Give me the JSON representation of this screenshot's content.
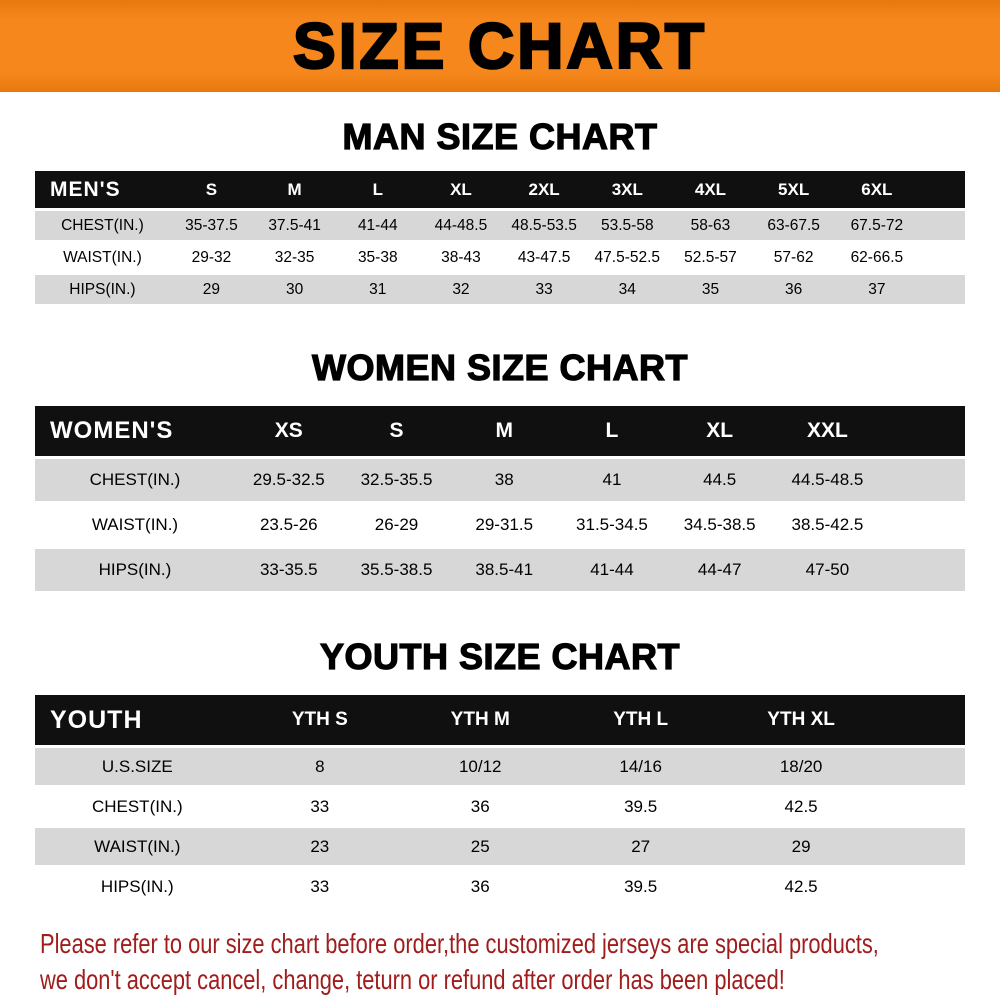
{
  "banner": {
    "title": "SIZE CHART"
  },
  "sections": [
    {
      "id": "men",
      "heading": "MAN SIZE CHART",
      "table": {
        "header": [
          "MEN'S",
          "S",
          "M",
          "L",
          "XL",
          "2XL",
          "3XL",
          "4XL",
          "5XL",
          "6XL"
        ],
        "rows": [
          [
            "CHEST(IN.)",
            "35-37.5",
            "37.5-41",
            "41-44",
            "44-48.5",
            "48.5-53.5",
            "53.5-58",
            "58-63",
            "63-67.5",
            "67.5-72"
          ],
          [
            "WAIST(IN.)",
            "29-32",
            "32-35",
            "35-38",
            "38-43",
            "43-47.5",
            "47.5-52.5",
            "52.5-57",
            "57-62",
            "62-66.5"
          ],
          [
            "HIPS(IN.)",
            "29",
            "30",
            "31",
            "32",
            "33",
            "34",
            "35",
            "36",
            "37"
          ]
        ]
      }
    },
    {
      "id": "women",
      "heading": "WOMEN SIZE CHART",
      "table": {
        "header": [
          "WOMEN'S",
          "XS",
          "S",
          "M",
          "L",
          "XL",
          "XXL"
        ],
        "rows": [
          [
            "CHEST(IN.)",
            "29.5-32.5",
            "32.5-35.5",
            "38",
            "41",
            "44.5",
            "44.5-48.5"
          ],
          [
            "WAIST(IN.)",
            "23.5-26",
            "26-29",
            "29-31.5",
            "31.5-34.5",
            "34.5-38.5",
            "38.5-42.5"
          ],
          [
            "HIPS(IN.)",
            "33-35.5",
            "35.5-38.5",
            "38.5-41",
            "41-44",
            "44-47",
            "47-50"
          ]
        ]
      }
    },
    {
      "id": "youth",
      "heading": "YOUTH SIZE CHART",
      "table": {
        "header": [
          "YOUTH",
          "YTH S",
          "YTH M",
          "YTH L",
          "YTH XL"
        ],
        "rows": [
          [
            "U.S.SIZE",
            "8",
            "10/12",
            "14/16",
            "18/20"
          ],
          [
            "CHEST(IN.)",
            "33",
            "36",
            "39.5",
            "42.5"
          ],
          [
            "WAIST(IN.)",
            "23",
            "25",
            "27",
            "29"
          ],
          [
            "HIPS(IN.)",
            "33",
            "36",
            "39.5",
            "42.5"
          ]
        ]
      }
    }
  ],
  "footer": {
    "line1": "Please refer to our size chart before order,the customized jerseys are special products,",
    "line2": "we don't accept cancel, change, teturn or refund after order has been placed!"
  },
  "colors": {
    "banner_bg": "#f6871c",
    "banner_edge": "#e6790e",
    "header_bg": "#101010",
    "stripe": "#d7d7d7",
    "footer_red": "#a01d1d"
  }
}
